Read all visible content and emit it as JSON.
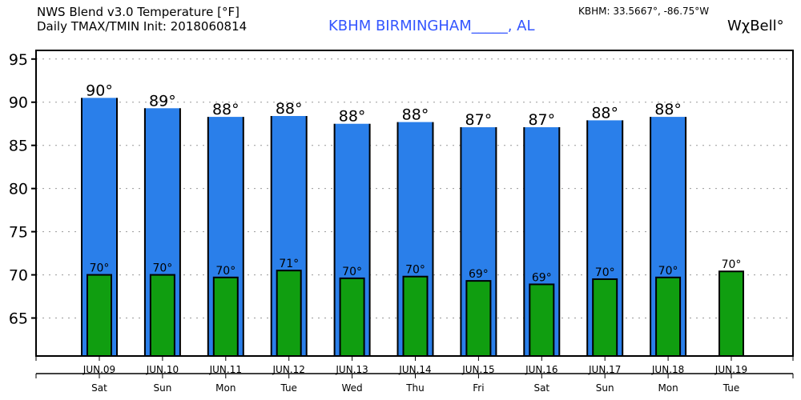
{
  "header": {
    "title_line1": "NWS Blend v3.0 Temperature [°F]",
    "title_line2": "Daily TMAX/TMIN Init: 2018060814",
    "station": "KBHM  BIRMINGHAM_____, AL",
    "coords": "KBHM: 33.5667°, -86.75°W",
    "brand": "WχBell°"
  },
  "colors": {
    "tmax": "#2a7fea",
    "tmin": "#109e10",
    "station": "#3355ff"
  },
  "chart_data": {
    "type": "bar",
    "title": "NWS Blend v3.0 Temperature [°F]",
    "ylabel": "°F",
    "ylim": [
      60.6,
      96
    ],
    "yticks": [
      65,
      70,
      75,
      80,
      85,
      90,
      95
    ],
    "grid": true,
    "categories": [
      "JUN.09",
      "JUN.10",
      "JUN.11",
      "JUN.12",
      "JUN.13",
      "JUN.14",
      "JUN.15",
      "JUN.16",
      "JUN.17",
      "JUN.18",
      "JUN.19"
    ],
    "days": [
      "Sat",
      "Sun",
      "Mon",
      "Tue",
      "Wed",
      "Thu",
      "Fri",
      "Sat",
      "Sun",
      "Mon",
      "Tue"
    ],
    "series": [
      {
        "name": "TMAX",
        "values": [
          90.5,
          89.3,
          88.3,
          88.4,
          87.5,
          87.7,
          87.1,
          87.1,
          87.9,
          88.3,
          null
        ],
        "labels": [
          "90°",
          "89°",
          "88°",
          "88°",
          "88°",
          "88°",
          "87°",
          "87°",
          "88°",
          "88°",
          null
        ]
      },
      {
        "name": "TMIN",
        "values": [
          70.0,
          70.0,
          69.7,
          70.5,
          69.6,
          69.8,
          69.3,
          68.9,
          69.5,
          69.7,
          70.4
        ],
        "labels": [
          "70°",
          "70°",
          "70°",
          "71°",
          "70°",
          "70°",
          "69°",
          "69°",
          "70°",
          "70°",
          "70°"
        ]
      }
    ]
  }
}
